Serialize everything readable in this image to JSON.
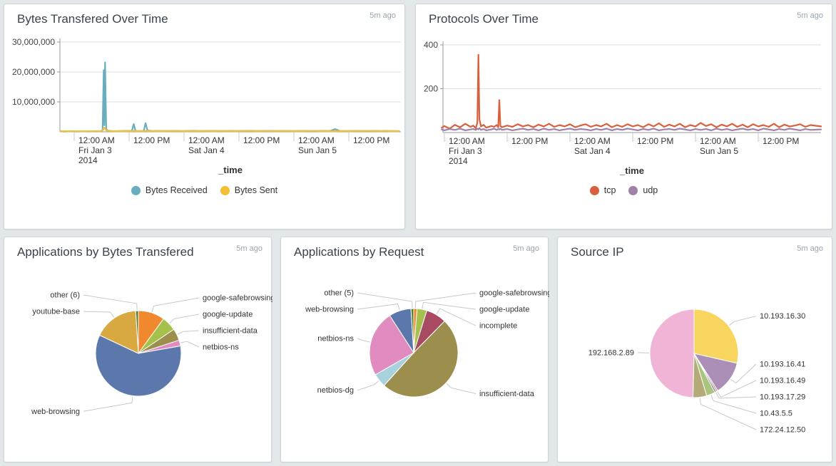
{
  "dashboard": {
    "refresh_age": "5m ago"
  },
  "chart_data": [
    {
      "type": "line",
      "title": "Bytes Transfered Over Time",
      "age": "5m ago",
      "xlabel": "_time",
      "ylim": [
        0,
        30000000
      ],
      "grid": true,
      "legend_position": "bottom",
      "yticks": [
        {
          "value": 10000000,
          "label": "10,000,000"
        },
        {
          "value": 20000000,
          "label": "20,000,000"
        },
        {
          "value": 30000000,
          "label": "30,000,000"
        }
      ],
      "xticks": [
        {
          "hour": 0,
          "lines": [
            "12:00 AM",
            "Fri Jan 3",
            "2014"
          ]
        },
        {
          "hour": 12,
          "lines": [
            "12:00 PM"
          ]
        },
        {
          "hour": 24,
          "lines": [
            "12:00 AM",
            "Sat Jan 4"
          ]
        },
        {
          "hour": 36,
          "lines": [
            "12:00 PM"
          ]
        },
        {
          "hour": 48,
          "lines": [
            "12:00 AM",
            "Sun Jan 5"
          ]
        },
        {
          "hour": 60,
          "lines": [
            "12:00 PM"
          ]
        }
      ],
      "x_hours": [
        -3,
        -2,
        -1,
        0,
        1,
        2,
        3,
        4,
        5,
        5.8,
        6.2,
        6.45,
        6.6,
        6.75,
        7,
        7.3,
        8,
        9,
        10,
        11,
        12,
        12.6,
        13,
        13.4,
        14,
        15.2,
        15.6,
        16,
        17,
        18,
        20,
        22,
        24,
        26,
        28,
        30,
        32,
        34,
        36,
        38,
        40,
        42,
        44,
        46,
        48,
        50,
        52,
        54,
        56,
        57,
        58,
        60,
        62,
        64,
        66,
        67,
        68,
        69,
        70,
        71
      ],
      "series": [
        {
          "name": "Bytes Received",
          "color": "#68AEC0",
          "values": [
            150000,
            100000,
            180000,
            130000,
            110000,
            160000,
            120000,
            170000,
            130000,
            220000,
            600000,
            20600000,
            2200000,
            23200000,
            900000,
            400000,
            280000,
            200000,
            260000,
            300000,
            340000,
            300000,
            2600000,
            320000,
            260000,
            300000,
            2900000,
            420000,
            260000,
            300000,
            280000,
            320000,
            260000,
            340000,
            280000,
            300000,
            260000,
            320000,
            280000,
            340000,
            260000,
            300000,
            280000,
            320000,
            260000,
            300000,
            280000,
            320000,
            300000,
            900000,
            320000,
            280000,
            300000,
            260000,
            320000,
            280000,
            300000,
            260000,
            280000,
            220000
          ]
        },
        {
          "name": "Bytes Sent",
          "color": "#F2BE33",
          "values": [
            200000,
            180000,
            210000,
            190000,
            180000,
            200000,
            180000,
            210000,
            190000,
            240000,
            500000,
            1000000,
            1400000,
            1150000,
            500000,
            320000,
            260000,
            210000,
            230000,
            210000,
            260000,
            230000,
            310000,
            230000,
            210000,
            230000,
            320000,
            260000,
            210000,
            230000,
            210000,
            260000,
            210000,
            240000,
            260000,
            210000,
            230000,
            210000,
            260000,
            300000,
            210000,
            230000,
            210000,
            260000,
            210000,
            230000,
            300000,
            210000,
            230000,
            210000,
            260000,
            210000,
            230000,
            300000,
            230000,
            210000,
            260000,
            210000,
            230000,
            190000
          ]
        }
      ]
    },
    {
      "type": "line",
      "title": "Protocols Over Time",
      "age": "5m ago",
      "xlabel": "_time",
      "ylim": [
        0,
        400
      ],
      "grid": true,
      "legend_position": "bottom",
      "yticks": [
        {
          "value": 200,
          "label": "200"
        },
        {
          "value": 400,
          "label": "400"
        }
      ],
      "xticks": [
        {
          "hour": 0,
          "lines": [
            "12:00 AM",
            "Fri Jan 3",
            "2014"
          ]
        },
        {
          "hour": 12,
          "lines": [
            "12:00 PM"
          ]
        },
        {
          "hour": 24,
          "lines": [
            "12:00 AM",
            "Sat Jan 4"
          ]
        },
        {
          "hour": 36,
          "lines": [
            "12:00 PM"
          ]
        },
        {
          "hour": 48,
          "lines": [
            "12:00 AM",
            "Sun Jan 5"
          ]
        },
        {
          "hour": 60,
          "lines": [
            "12:00 PM"
          ]
        }
      ],
      "x_hours": [
        -0.5,
        0,
        1,
        2,
        3,
        4,
        5,
        5.5,
        6,
        6.3,
        6.5,
        6.7,
        7,
        7.5,
        8,
        9,
        9.5,
        10,
        10.3,
        10.5,
        10.7,
        11,
        12,
        13,
        14,
        15,
        16,
        17,
        18,
        19,
        20,
        21,
        22,
        23,
        24,
        25,
        26,
        27,
        28,
        29,
        30,
        31,
        32,
        33,
        34,
        35,
        36,
        37,
        38,
        39,
        40,
        41,
        42,
        43,
        44,
        45,
        46,
        47,
        48,
        49,
        50,
        51,
        52,
        53,
        54,
        55,
        56,
        57,
        58,
        59,
        60,
        61,
        62,
        63,
        64,
        65,
        66,
        67,
        68,
        69,
        70,
        72
      ],
      "series": [
        {
          "name": "tcp",
          "color": "#D9603C",
          "values": [
            22,
            30,
            18,
            35,
            24,
            40,
            26,
            32,
            20,
            45,
            355,
            60,
            28,
            35,
            22,
            30,
            26,
            34,
            24,
            148,
            30,
            24,
            32,
            26,
            38,
            28,
            34,
            24,
            36,
            28,
            40,
            26,
            34,
            28,
            38,
            24,
            32,
            38,
            26,
            34,
            28,
            40,
            24,
            34,
            26,
            38,
            28,
            34,
            24,
            38,
            28,
            42,
            26,
            36,
            28,
            40,
            24,
            34,
            28,
            44,
            30,
            38,
            24,
            36,
            28,
            40,
            26,
            36,
            24,
            38,
            28,
            34,
            26,
            40,
            24,
            36,
            28,
            32,
            38,
            26,
            34,
            28
          ]
        },
        {
          "name": "udp",
          "color": "#9E80A8",
          "values": [
            14,
            10,
            16,
            12,
            18,
            10,
            14,
            16,
            12,
            18,
            14,
            20,
            12,
            16,
            10,
            14,
            18,
            12,
            16,
            14,
            18,
            12,
            16,
            10,
            14,
            18,
            12,
            16,
            10,
            18,
            12,
            16,
            10,
            14,
            18,
            12,
            16,
            14,
            10,
            16,
            12,
            18,
            10,
            16,
            12,
            18,
            14,
            10,
            16,
            12,
            18,
            10,
            14,
            16,
            12,
            18,
            14,
            10,
            16,
            12,
            16,
            10,
            18,
            12,
            16,
            10,
            14,
            18,
            12,
            16,
            10,
            18,
            14,
            10,
            16,
            12,
            18,
            14,
            10,
            16,
            12,
            14
          ]
        }
      ]
    },
    {
      "type": "pie",
      "title": "Applications by Bytes Transfered",
      "age": "5m ago",
      "slices": [
        {
          "label": "google-safebrowsing",
          "pct": 10.0,
          "color": "#F0892E"
        },
        {
          "label": "google-update",
          "pct": 5.5,
          "color": "#A6C14B"
        },
        {
          "label": "insufficient-data",
          "pct": 4.5,
          "color": "#9C8F4E"
        },
        {
          "label": "netbios-ns",
          "pct": 2.2,
          "color": "#E18CC1"
        },
        {
          "label": "web-browsing",
          "pct": 59.8,
          "color": "#5B77AB"
        },
        {
          "label": "youtube-base",
          "pct": 17.0,
          "color": "#D8A940"
        },
        {
          "label": "other (6)",
          "pct": 1.0,
          "color": "#567F2B"
        }
      ]
    },
    {
      "type": "pie",
      "title": "Applications by Request",
      "age": "5m ago",
      "slices": [
        {
          "label": "google-safebrowsing",
          "pct": 1.2,
          "color": "#F0892E"
        },
        {
          "label": "google-update",
          "pct": 3.6,
          "color": "#A6C14B"
        },
        {
          "label": "incomplete",
          "pct": 7.5,
          "color": "#A84B62"
        },
        {
          "label": "insufficient-data",
          "pct": 49.4,
          "color": "#9C8F4E"
        },
        {
          "label": "netbios-dg",
          "pct": 5.0,
          "color": "#A8D2DE"
        },
        {
          "label": "netbios-ns",
          "pct": 24.2,
          "color": "#E18CC1"
        },
        {
          "label": "web-browsing",
          "pct": 8.1,
          "color": "#5B77AB"
        },
        {
          "label": "other (5)",
          "pct": 1.0,
          "color": "#567F2B"
        }
      ]
    },
    {
      "type": "pie",
      "title": "Source IP",
      "age": "5m ago",
      "slices": [
        {
          "label": "10.193.16.30",
          "pct": 28.6,
          "color": "#F8D55F"
        },
        {
          "label": "10.193.16.41",
          "pct": 12.4,
          "color": "#AB8FB7"
        },
        {
          "label": "10.193.16.49",
          "pct": 0.6,
          "color": "#DE8E68"
        },
        {
          "label": "10.193.17.29",
          "pct": 0.6,
          "color": "#5B77AB"
        },
        {
          "label": "10.43.5.5",
          "pct": 3.2,
          "color": "#A9C47C"
        },
        {
          "label": "172.24.12.50",
          "pct": 5.0,
          "color": "#B3AA78"
        },
        {
          "label": "192.168.2.89",
          "pct": 49.6,
          "color": "#F0B4D7"
        }
      ]
    }
  ]
}
